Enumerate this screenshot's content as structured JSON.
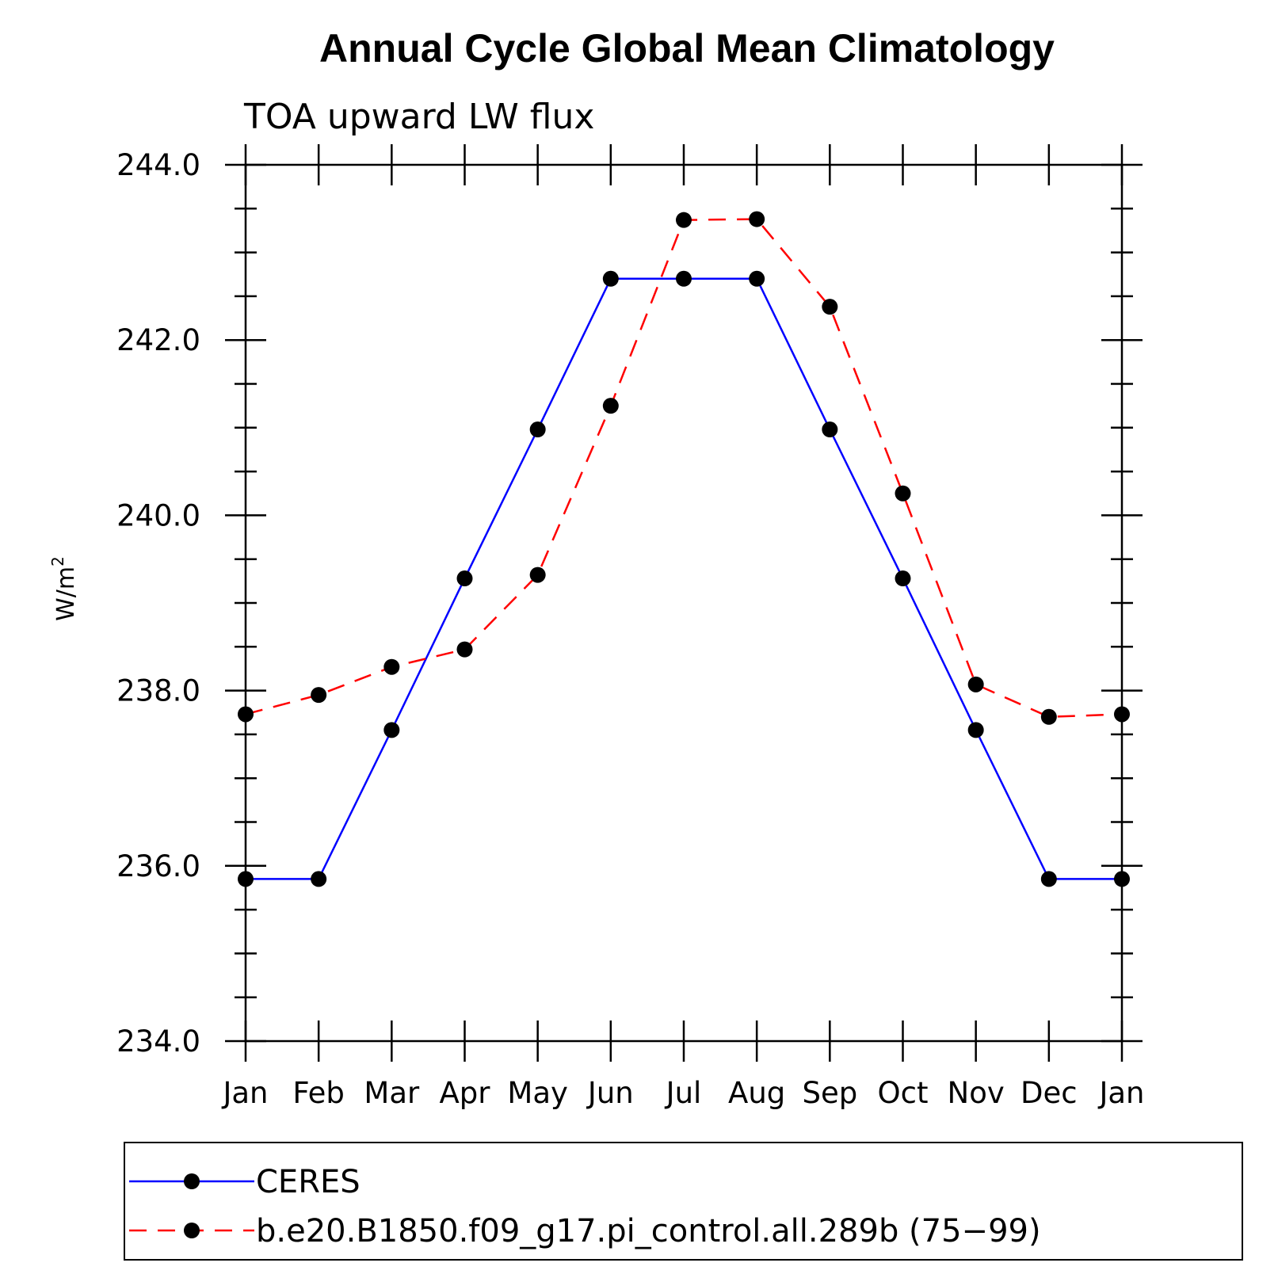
{
  "chart_data": {
    "type": "line",
    "title": "Annual Cycle Global Mean Climatology",
    "subtitle": "TOA upward LW flux",
    "ylabel": "W/m",
    "ylabel_superscript": "2",
    "ylim": [
      234.0,
      244.0
    ],
    "yticks": [
      "234.0",
      "236.0",
      "238.0",
      "240.0",
      "242.0",
      "244.0"
    ],
    "categories": [
      "Jan",
      "Feb",
      "Mar",
      "Apr",
      "May",
      "Jun",
      "Jul",
      "Aug",
      "Sep",
      "Oct",
      "Nov",
      "Dec",
      "Jan"
    ],
    "series": [
      {
        "name": "CERES",
        "color": "#0000ff",
        "style": "solid",
        "values": [
          235.85,
          235.85,
          237.55,
          239.28,
          240.98,
          242.7,
          242.7,
          242.7,
          240.98,
          239.28,
          237.55,
          235.85,
          235.85
        ]
      },
      {
        "name": "b.e20.B1850.f09_g17.pi_control.all.289b (75−99)",
        "color": "#ff0000",
        "style": "dashed",
        "values": [
          237.73,
          237.95,
          238.27,
          238.47,
          239.32,
          241.25,
          243.37,
          243.38,
          242.38,
          240.25,
          238.07,
          237.7,
          237.73
        ]
      }
    ],
    "marker_color": "#000000",
    "legend_position": "bottom"
  }
}
